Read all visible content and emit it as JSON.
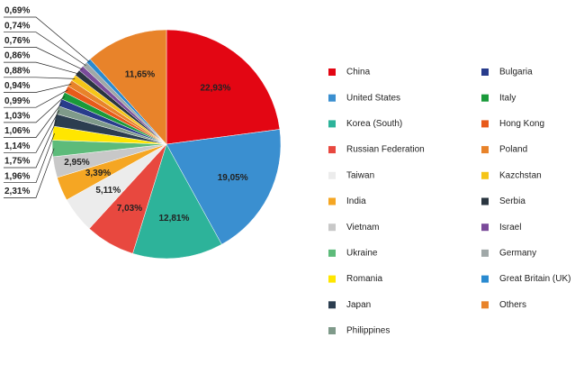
{
  "chart_data": {
    "type": "pie",
    "categories": [
      "China",
      "United States",
      "Korea (South)",
      "Russian Federation",
      "Taiwan",
      "India",
      "Vietnam",
      "Ukraine",
      "Romania",
      "Japan",
      "Philippines",
      "Bulgaria",
      "Italy",
      "Hong Kong",
      "Poland",
      "Kazchstan",
      "Serbia",
      "Israel",
      "Germany",
      "Great Britain (UK)",
      "Others"
    ],
    "values": [
      22.93,
      19.05,
      12.81,
      7.03,
      5.11,
      3.39,
      2.95,
      2.31,
      1.96,
      1.75,
      1.14,
      1.06,
      1.03,
      0.99,
      0.94,
      0.88,
      0.86,
      0.76,
      0.74,
      0.69,
      11.65
    ],
    "value_labels": [
      "22,93%",
      "19,05%",
      "12,81%",
      "7,03%",
      "5,11%",
      "3,39%",
      "2,95%",
      "2,31%",
      "1,96%",
      "1,75%",
      "1,14%",
      "1,06%",
      "1,03%",
      "0,99%",
      "0,94%",
      "0,88%",
      "0,86%",
      "0,76%",
      "0,74%",
      "0,69%",
      "11,65%"
    ],
    "colors": [
      "#e30613",
      "#3a8fd0",
      "#2db39a",
      "#e8483f",
      "#ececec",
      "#f5a623",
      "#c8c8c8",
      "#5dbb7a",
      "#ffe600",
      "#2c3e50",
      "#7f9a8a",
      "#283c8c",
      "#1a9a3a",
      "#e85a1a",
      "#e8832a",
      "#f5c518",
      "#2a3540",
      "#7a4a9a",
      "#a0a8a8",
      "#2a8ad0",
      "#e8832a"
    ]
  }
}
